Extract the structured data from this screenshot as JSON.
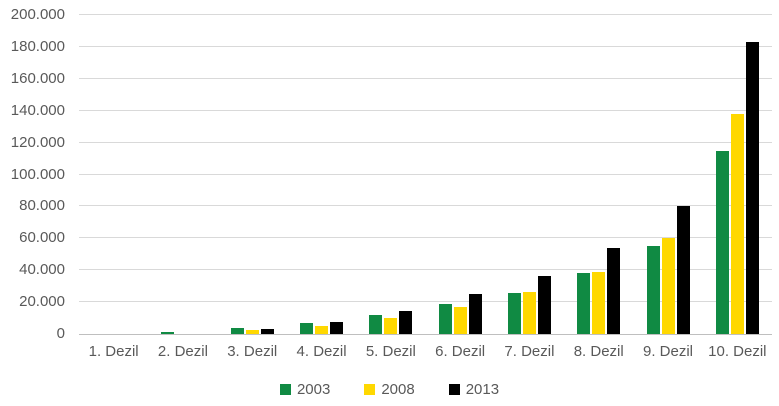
{
  "chart_data": {
    "type": "bar",
    "title": "",
    "xlabel": "",
    "ylabel": "",
    "categories": [
      "1. Dezil",
      "2. Dezil",
      "3. Dezil",
      "4. Dezil",
      "5. Dezil",
      "6. Dezil",
      "7. Dezil",
      "8. Dezil",
      "9. Dezil",
      "10. Dezil"
    ],
    "series": [
      {
        "name": "2003",
        "color": "#108a43",
        "values": [
          0,
          1500,
          4000,
          7000,
          12000,
          18500,
          26000,
          38000,
          55000,
          115000
        ]
      },
      {
        "name": "2008",
        "color": "#ffd800",
        "values": [
          0,
          0,
          2500,
          5000,
          10000,
          17000,
          26500,
          39000,
          60000,
          138000
        ]
      },
      {
        "name": "2013",
        "color": "#000000",
        "values": [
          0,
          0,
          3000,
          7500,
          14500,
          25000,
          36500,
          54000,
          80000,
          183000
        ]
      }
    ],
    "ylim": [
      0,
      200000
    ],
    "y_tick_step": 20000,
    "y_tick_labels": [
      "0",
      "20.000",
      "40.000",
      "60.000",
      "80.000",
      "100.000",
      "120.000",
      "140.000",
      "160.000",
      "180.000",
      "200.000"
    ],
    "grid": true,
    "legend_position": "bottom"
  },
  "colors": {
    "background": "#ffffff",
    "gridline": "#d9d9d9",
    "axis_line": "#bfbfbf",
    "tick_text": "#595959",
    "series_2003": "#108a43",
    "series_2008": "#ffd800",
    "series_2013": "#000000"
  }
}
